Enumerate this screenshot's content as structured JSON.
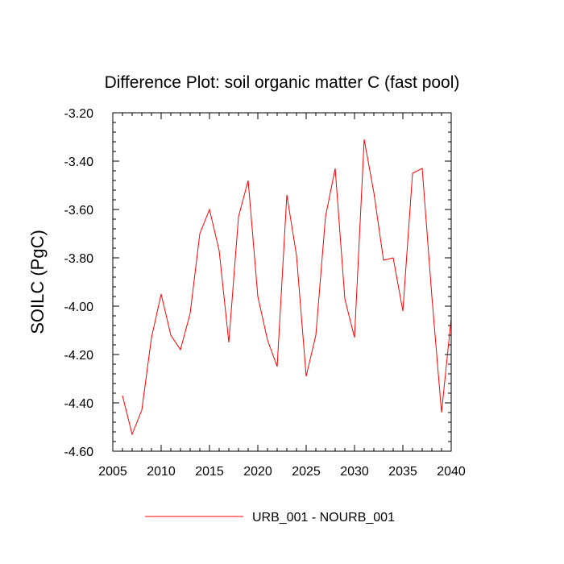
{
  "chart_data": {
    "type": "line",
    "title": "Difference Plot: soil organic matter C (fast pool)",
    "xlabel": "",
    "ylabel": "SOILC  (PgC)",
    "xlim": [
      2005,
      2040
    ],
    "ylim": [
      -4.6,
      -3.2
    ],
    "xticks": [
      2005,
      2010,
      2015,
      2020,
      2025,
      2030,
      2035,
      2040
    ],
    "xtick_labels": [
      "2005",
      "2010",
      "2015",
      "2020",
      "2025",
      "2030",
      "2035",
      "2040"
    ],
    "yticks": [
      -4.6,
      -4.4,
      -4.2,
      -4.0,
      -3.8,
      -3.6,
      -3.4,
      -3.2
    ],
    "ytick_labels": [
      "-4.60",
      "-4.40",
      "-4.20",
      "-4.00",
      "-3.80",
      "-3.60",
      "-3.40",
      "-3.20"
    ],
    "grid": false,
    "legend_position": "bottom-center",
    "series": [
      {
        "name": "URB_001 - NOURB_001",
        "color": "#ff0000",
        "x": [
          2006,
          2007,
          2008,
          2009,
          2010,
          2011,
          2012,
          2013,
          2014,
          2015,
          2016,
          2017,
          2018,
          2019,
          2020,
          2021,
          2022,
          2023,
          2024,
          2025,
          2026,
          2027,
          2028,
          2029,
          2030,
          2031,
          2032,
          2033,
          2034,
          2035,
          2036,
          2037,
          2038,
          2039,
          2040
        ],
        "y": [
          -4.37,
          -4.53,
          -4.43,
          -4.13,
          -3.95,
          -4.12,
          -4.18,
          -4.03,
          -3.7,
          -3.6,
          -3.77,
          -4.15,
          -3.63,
          -3.48,
          -3.96,
          -4.14,
          -4.25,
          -3.54,
          -3.79,
          -4.29,
          -4.12,
          -3.63,
          -3.43,
          -3.97,
          -4.13,
          -3.31,
          -3.53,
          -3.81,
          -3.8,
          -4.02,
          -3.45,
          -3.43,
          -3.96,
          -4.44,
          -4.05
        ]
      }
    ]
  }
}
